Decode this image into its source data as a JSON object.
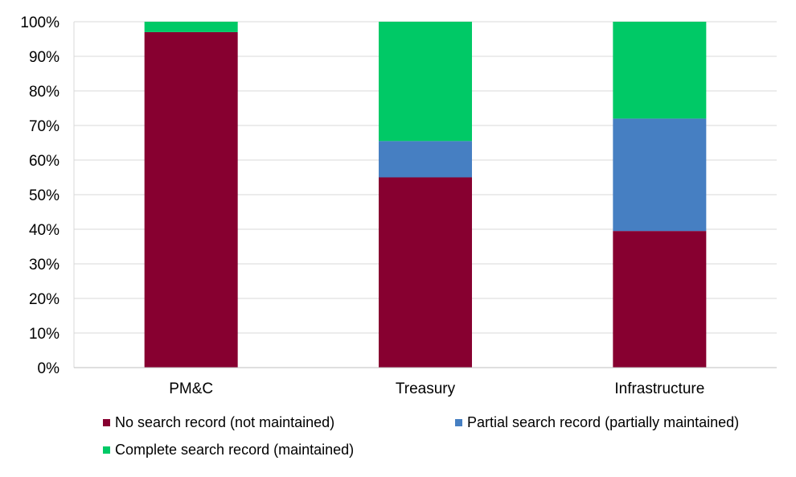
{
  "chart_data": {
    "type": "bar",
    "stacked": true,
    "title": "",
    "xlabel": "",
    "ylabel": "",
    "ylim": [
      0,
      100
    ],
    "y_ticks": [
      "0%",
      "10%",
      "20%",
      "30%",
      "40%",
      "50%",
      "60%",
      "70%",
      "80%",
      "90%",
      "100%"
    ],
    "grid": true,
    "legend_position": "bottom",
    "categories": [
      "PM&C",
      "Treasury",
      "Infrastructure"
    ],
    "series": [
      {
        "name": "No search record (not maintained)",
        "color": "#870030",
        "values": [
          97,
          55,
          39.5
        ]
      },
      {
        "name": "Partial search record (partially maintained)",
        "color": "#467FC2",
        "values": [
          0,
          10.5,
          32.5
        ]
      },
      {
        "name": "Complete search record (maintained)",
        "color": "#00C966",
        "values": [
          3,
          34.5,
          28
        ]
      }
    ]
  }
}
